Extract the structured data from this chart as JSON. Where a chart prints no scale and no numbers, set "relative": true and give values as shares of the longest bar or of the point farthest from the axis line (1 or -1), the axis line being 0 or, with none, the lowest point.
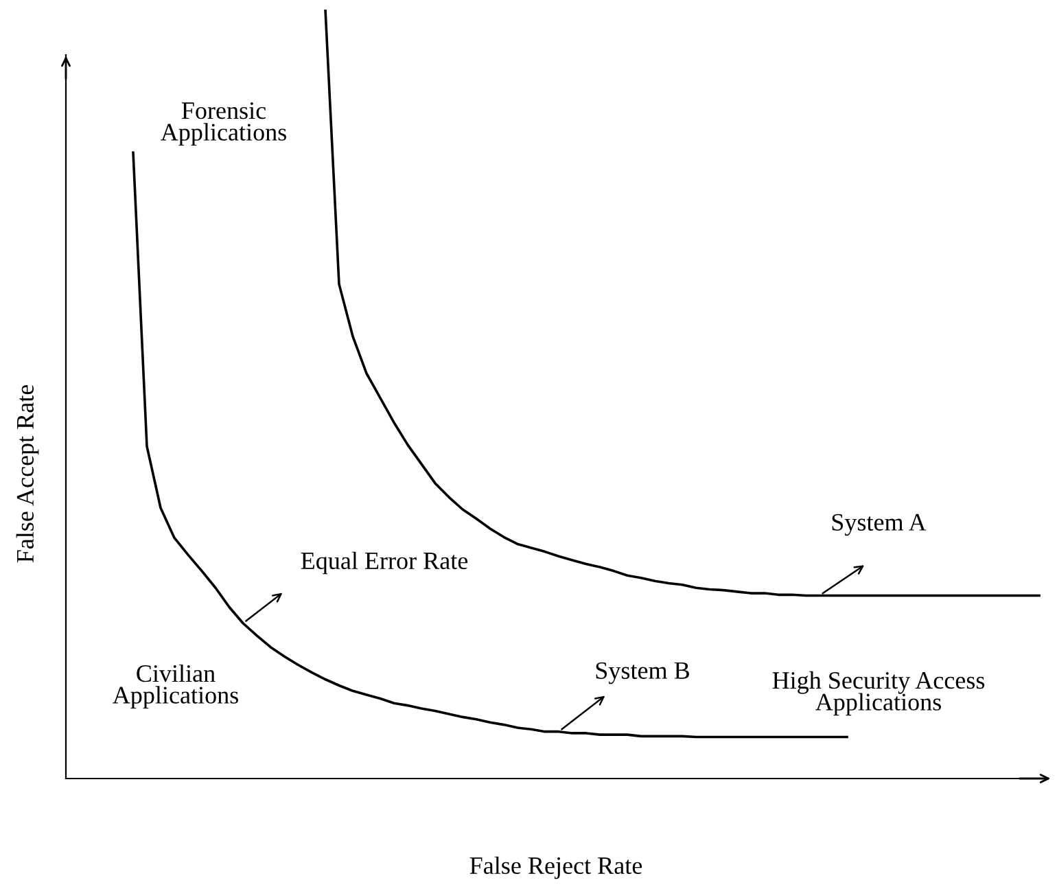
{
  "chart_data": {
    "type": "line",
    "relative": true,
    "xlabel": "False Reject Rate",
    "ylabel": "False Accept Rate",
    "categories": [
      null,
      null,
      null,
      null,
      null,
      null,
      null,
      null,
      null,
      null,
      null,
      null,
      null,
      null,
      null,
      null,
      null,
      null,
      null,
      null,
      null,
      null,
      null,
      null,
      null,
      null,
      null,
      null,
      null,
      null,
      null,
      null,
      null,
      null,
      null,
      null,
      null,
      null,
      null,
      null,
      null,
      null,
      null,
      null,
      null,
      null,
      null,
      null,
      null,
      null,
      null,
      null,
      null,
      null,
      null,
      null,
      null,
      null,
      null,
      null,
      null,
      null,
      null,
      null,
      null,
      null,
      null
    ],
    "series": [
      {
        "name": "System A",
        "color": "#000000",
        "values": [
          null,
          null,
          null,
          null,
          null,
          null,
          null,
          null,
          null,
          null,
          null,
          null,
          null,
          null,
          1.0,
          0.643,
          0.575,
          0.527,
          0.495,
          0.463,
          0.434,
          0.409,
          0.384,
          0.366,
          0.35,
          0.338,
          0.325,
          0.314,
          0.305,
          0.3,
          0.295,
          0.289,
          0.284,
          0.279,
          0.275,
          0.27,
          0.264,
          0.261,
          0.257,
          0.254,
          0.252,
          0.248,
          0.246,
          0.245,
          0.243,
          0.241,
          0.241,
          0.239,
          0.239,
          0.238,
          0.238,
          0.238,
          0.238,
          0.238,
          0.238,
          0.238,
          0.238,
          0.238,
          0.238,
          0.238,
          0.238,
          0.238,
          0.238,
          0.238,
          0.238,
          0.238,
          0.238
        ]
      },
      {
        "name": "System B",
        "color": "#000000",
        "values": [
          0.814,
          0.432,
          0.352,
          0.313,
          0.291,
          0.27,
          0.248,
          0.223,
          0.202,
          0.186,
          0.171,
          0.159,
          0.148,
          0.138,
          0.129,
          0.121,
          0.114,
          0.109,
          0.104,
          0.098,
          0.095,
          0.091,
          0.088,
          0.084,
          0.08,
          0.077,
          0.073,
          0.07,
          0.066,
          0.064,
          0.061,
          0.061,
          0.059,
          0.059,
          0.057,
          0.057,
          0.057,
          0.055,
          0.055,
          0.055,
          0.055,
          0.054,
          0.054,
          0.054,
          0.054,
          0.054,
          0.054,
          0.054,
          0.054,
          0.054,
          0.054,
          0.054,
          0.054,
          null,
          null,
          null,
          null,
          null,
          null,
          null,
          null,
          null,
          null,
          null,
          null,
          null,
          null
        ]
      }
    ],
    "annotations": [
      "Forensic\nApplications",
      "Civilian\nApplications",
      "High Security Access\nApplications",
      "Equal Error Rate"
    ],
    "legend": false,
    "marker": "none",
    "line_style": "solid"
  }
}
